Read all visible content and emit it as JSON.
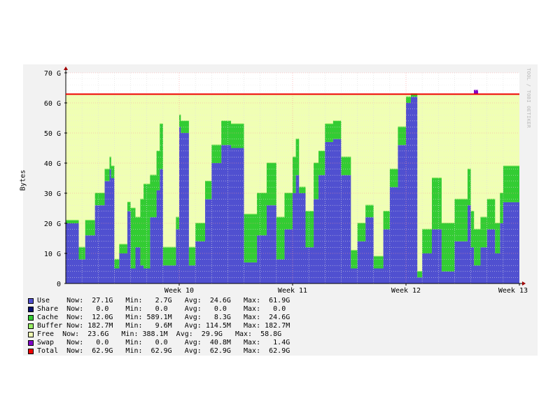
{
  "chart_data": {
    "type": "area",
    "title": "",
    "xlabel": "",
    "ylabel": "Bytes",
    "ylim": [
      0,
      70
    ],
    "y_unit": "G",
    "y_ticks": [
      "0",
      "10 G",
      "20 G",
      "30 G",
      "40 G",
      "50 G",
      "60 G",
      "70 G"
    ],
    "x_ticks": [
      "Week 10",
      "Week 11",
      "Week 12",
      "Week 13"
    ],
    "x_range_days": [
      0,
      28
    ],
    "x_tick_days": [
      7,
      14,
      21,
      28
    ],
    "grid": true,
    "stacked": true,
    "x": [
      0,
      0.8,
      1.2,
      1.8,
      2.4,
      2.7,
      2.8,
      3.0,
      3.3,
      3.8,
      4.0,
      4.3,
      4.6,
      4.8,
      5.2,
      5.6,
      5.8,
      6.0,
      6.8,
      7.0,
      7.1,
      7.6,
      8.0,
      8.6,
      9.0,
      9.6,
      10.2,
      11.0,
      11.8,
      12.4,
      13.0,
      13.5,
      14.0,
      14.2,
      14.4,
      14.8,
      15.3,
      15.6,
      16.0,
      16.5,
      17.0,
      17.6,
      18.0,
      18.5,
      19.0,
      19.6,
      20.0,
      20.5,
      21.0,
      21.3,
      21.7,
      22.0,
      22.6,
      23.2,
      24.0,
      24.8,
      25.0,
      25.2,
      25.6,
      26.0,
      26.5,
      26.8,
      27.0,
      27.4,
      28.0
    ],
    "series": [
      {
        "name": "Use",
        "color": "#5050d0",
        "values": [
          20,
          8,
          16,
          26,
          34,
          38,
          35,
          5,
          10,
          24,
          5,
          12,
          6,
          5,
          22,
          31,
          38,
          6,
          18,
          52,
          50,
          6,
          14,
          28,
          40,
          46,
          45,
          7,
          16,
          26,
          8,
          18,
          30,
          36,
          30,
          12,
          28,
          36,
          47,
          48,
          36,
          5,
          14,
          22,
          5,
          18,
          32,
          46,
          60,
          62,
          2,
          10,
          18,
          4,
          14,
          26,
          12,
          6,
          12,
          18,
          10,
          20,
          27,
          27,
          27
        ]
      },
      {
        "name": "Share",
        "color": "#0a1270",
        "values": [
          0,
          0,
          0,
          0,
          0,
          0,
          0,
          0,
          0,
          0,
          0,
          0,
          0,
          0,
          0,
          0,
          0,
          0,
          0,
          0,
          0,
          0,
          0,
          0,
          0,
          0,
          0,
          0,
          0,
          0,
          0,
          0,
          0,
          0,
          0,
          0,
          0,
          0,
          0,
          0,
          0,
          0,
          0,
          0,
          0,
          0,
          0,
          0,
          0,
          0,
          0,
          0,
          0,
          0,
          0,
          0,
          0,
          0,
          0,
          0,
          0,
          0,
          0,
          0,
          0
        ]
      },
      {
        "name": "Cache",
        "color": "#33cc33",
        "values": [
          1,
          4,
          5,
          4,
          4,
          4,
          4,
          3,
          3,
          3,
          20,
          10,
          22,
          28,
          14,
          13,
          15,
          6,
          4,
          4,
          4,
          6,
          6,
          6,
          6,
          8,
          8,
          16,
          14,
          14,
          14,
          12,
          12,
          12,
          2,
          12,
          12,
          8,
          6,
          6,
          6,
          6,
          6,
          4,
          4,
          6,
          6,
          6,
          2,
          1,
          2,
          8,
          17,
          16,
          14,
          12,
          12,
          12,
          10,
          10,
          10,
          10,
          12,
          12,
          12
        ]
      },
      {
        "name": "Buffer",
        "color": "#99ee66",
        "values": [
          0.2,
          0.2,
          0.2,
          0.2,
          0.2,
          0.2,
          0.2,
          0.2,
          0.2,
          0.2,
          0.2,
          0.2,
          0.2,
          0.2,
          0.2,
          0.2,
          0.2,
          0.2,
          0.2,
          0.2,
          0.2,
          0.2,
          0.2,
          0.2,
          0.2,
          0.2,
          0.2,
          0.2,
          0.2,
          0.2,
          0.2,
          0.2,
          0.2,
          0.2,
          0.2,
          0.2,
          0.2,
          0.2,
          0.2,
          0.2,
          0.2,
          0.2,
          0.2,
          0.2,
          0.2,
          0.2,
          0.2,
          0.2,
          0.2,
          0.2,
          0.2,
          0.2,
          0.2,
          0.2,
          0.2,
          0.2,
          0.2,
          0.2,
          0.2,
          0.2,
          0.2,
          0.2,
          0.2,
          0.2,
          0.2
        ]
      },
      {
        "name": "Free",
        "color": "#f0ffb4",
        "fill_to_total": true
      },
      {
        "name": "Swap",
        "color": "#8000c8",
        "values_note": "spike near Week 13"
      },
      {
        "name": "Total",
        "color": "#ee0000",
        "constant": 62.9
      }
    ],
    "legend_placement": "bottom"
  },
  "legend": [
    {
      "name": "Use",
      "color": "#5050d0",
      "text": "Use    Now:  27.1G   Min:   2.7G   Avg:  24.6G   Max:  61.9G"
    },
    {
      "name": "Share",
      "color": "#0a1270",
      "text": "Share  Now:   0.0    Min:   0.0    Avg:   0.0    Max:   0.0"
    },
    {
      "name": "Cache",
      "color": "#33cc33",
      "text": "Cache  Now:  12.0G   Min: 589.1M   Avg:   8.3G   Max:  24.6G"
    },
    {
      "name": "Buffer",
      "color": "#99ee66",
      "text": "Buffer Now: 182.7M   Min:   9.6M   Avg: 114.5M   Max: 182.7M"
    },
    {
      "name": "Free",
      "color": "#f0ffb4",
      "text": "Free  Now:  23.6G   Min: 388.1M  Avg:  29.9G   Max:  58.8G"
    },
    {
      "name": "Swap",
      "color": "#8000c8",
      "text": "Swap   Now:   0.0    Min:   0.0    Avg:  40.8M   Max:   1.4G"
    },
    {
      "name": "Total",
      "color": "#ee0000",
      "text": "Total  Now:  62.9G   Min:  62.9G   Avg:  62.9G   Max:  62.9G"
    }
  ],
  "watermark": "TOOL / TOBI OETIKER"
}
